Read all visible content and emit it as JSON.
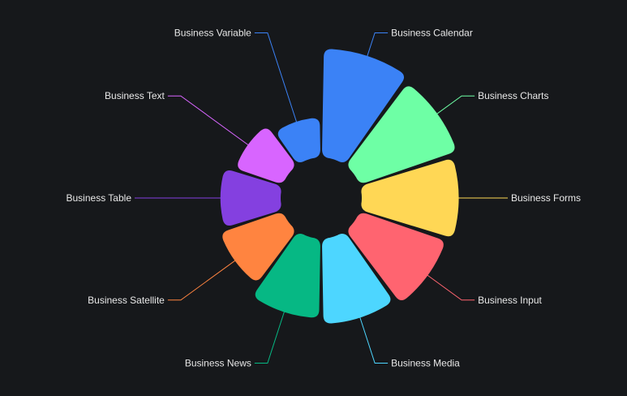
{
  "chart_data": {
    "type": "pie",
    "variant": "nightingale-rose",
    "title": "",
    "legend": "none",
    "categories": [
      "Business Calendar",
      "Business Charts",
      "Business Forms",
      "Business Input",
      "Business Media",
      "Business News",
      "Business Satellite",
      "Business Table",
      "Business Text",
      "Business Variable"
    ],
    "values": [
      148,
      140,
      132,
      124,
      116,
      108,
      90,
      82,
      68,
      54
    ],
    "colors": [
      "#3b82f6",
      "#6effa5",
      "#ffd755",
      "#ff6470",
      "#4dd6ff",
      "#06b884",
      "#ff8440",
      "#8440e0",
      "#d865ff",
      "#3b82f6"
    ]
  }
}
